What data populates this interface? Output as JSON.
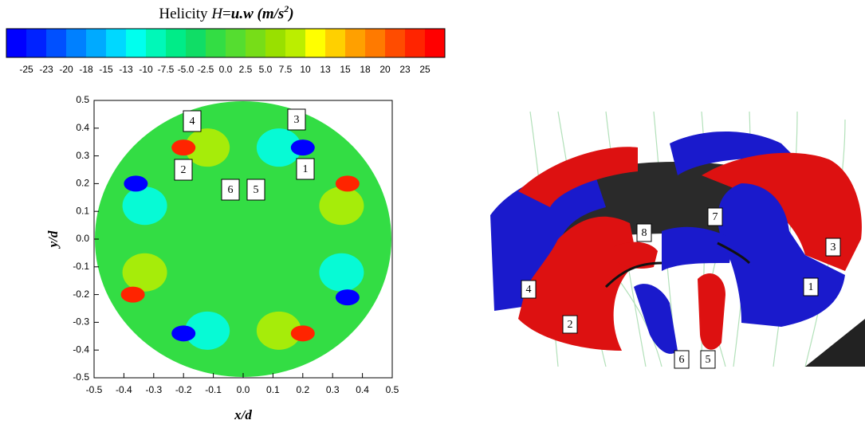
{
  "colorbar": {
    "title": {
      "name": "Helicity",
      "symbol": "H",
      "equals": "=",
      "expression": "u.w",
      "unit": "(m/s",
      "unit_exponent": "2",
      "close": ")"
    },
    "colors": [
      "#0000ff",
      "#0022ff",
      "#0050ff",
      "#0080ff",
      "#00aaff",
      "#00d8ff",
      "#00ffee",
      "#00f8b8",
      "#00ec88",
      "#10dd66",
      "#33dd44",
      "#55dd30",
      "#77dd18",
      "#99e000",
      "#bbee00",
      "#ffff00",
      "#ffd000",
      "#ffa000",
      "#ff7a00",
      "#ff4c00",
      "#ff2400",
      "#ff0000"
    ],
    "ticks": [
      -25,
      -23,
      -20,
      -18,
      -15,
      -13,
      -10,
      -7.5,
      {
        "value": -5,
        "label": "-5.0"
      },
      -2.5,
      {
        "value": 0,
        "label": "0.0"
      },
      2.5,
      {
        "value": 5,
        "label": "5.0"
      },
      7.5,
      10,
      13,
      15,
      18,
      20,
      23,
      25
    ]
  },
  "chart_data": {
    "type": "contour",
    "xlabel": "x/d",
    "ylabel": "y/d",
    "xlim": [
      -0.5,
      0.5
    ],
    "ylim": [
      -0.5,
      0.5
    ],
    "xticks": [
      -0.5,
      -0.4,
      -0.3,
      -0.2,
      -0.1,
      {
        "value": 0,
        "label": "0.0"
      },
      0.1,
      0.2,
      0.3,
      0.4,
      0.5
    ],
    "yticks": [
      -0.5,
      -0.4,
      -0.3,
      -0.2,
      -0.1,
      {
        "value": 0,
        "label": "0.0"
      },
      0.1,
      0.2,
      0.3,
      0.4,
      0.5
    ],
    "field_value": 0,
    "vortices": [
      {
        "x": -0.33,
        "y": 0.12,
        "value": -10
      },
      {
        "x": 0.33,
        "y": 0.12,
        "value": 10
      },
      {
        "x": -0.12,
        "y": 0.33,
        "value": 10
      },
      {
        "x": 0.12,
        "y": 0.33,
        "value": -10
      },
      {
        "x": -0.33,
        "y": -0.12,
        "value": 10
      },
      {
        "x": 0.33,
        "y": -0.12,
        "value": -10
      },
      {
        "x": -0.12,
        "y": -0.33,
        "value": -10
      },
      {
        "x": 0.12,
        "y": -0.33,
        "value": 10
      },
      {
        "x": -0.2,
        "y": 0.33,
        "value": 25
      },
      {
        "x": 0.2,
        "y": 0.33,
        "value": -25
      },
      {
        "x": -0.36,
        "y": 0.2,
        "value": -25
      },
      {
        "x": 0.35,
        "y": 0.2,
        "value": 25
      },
      {
        "x": -0.37,
        "y": -0.2,
        "value": 25
      },
      {
        "x": 0.35,
        "y": -0.21,
        "value": -25
      },
      {
        "x": -0.2,
        "y": -0.34,
        "value": -25
      },
      {
        "x": 0.2,
        "y": -0.34,
        "value": 25
      }
    ],
    "annotations": [
      "4",
      "3",
      "2",
      "1",
      "6",
      "5"
    ]
  },
  "rendering": {
    "labels": [
      "7",
      "8",
      "3",
      "4",
      "1",
      "2",
      "6",
      "5"
    ]
  }
}
